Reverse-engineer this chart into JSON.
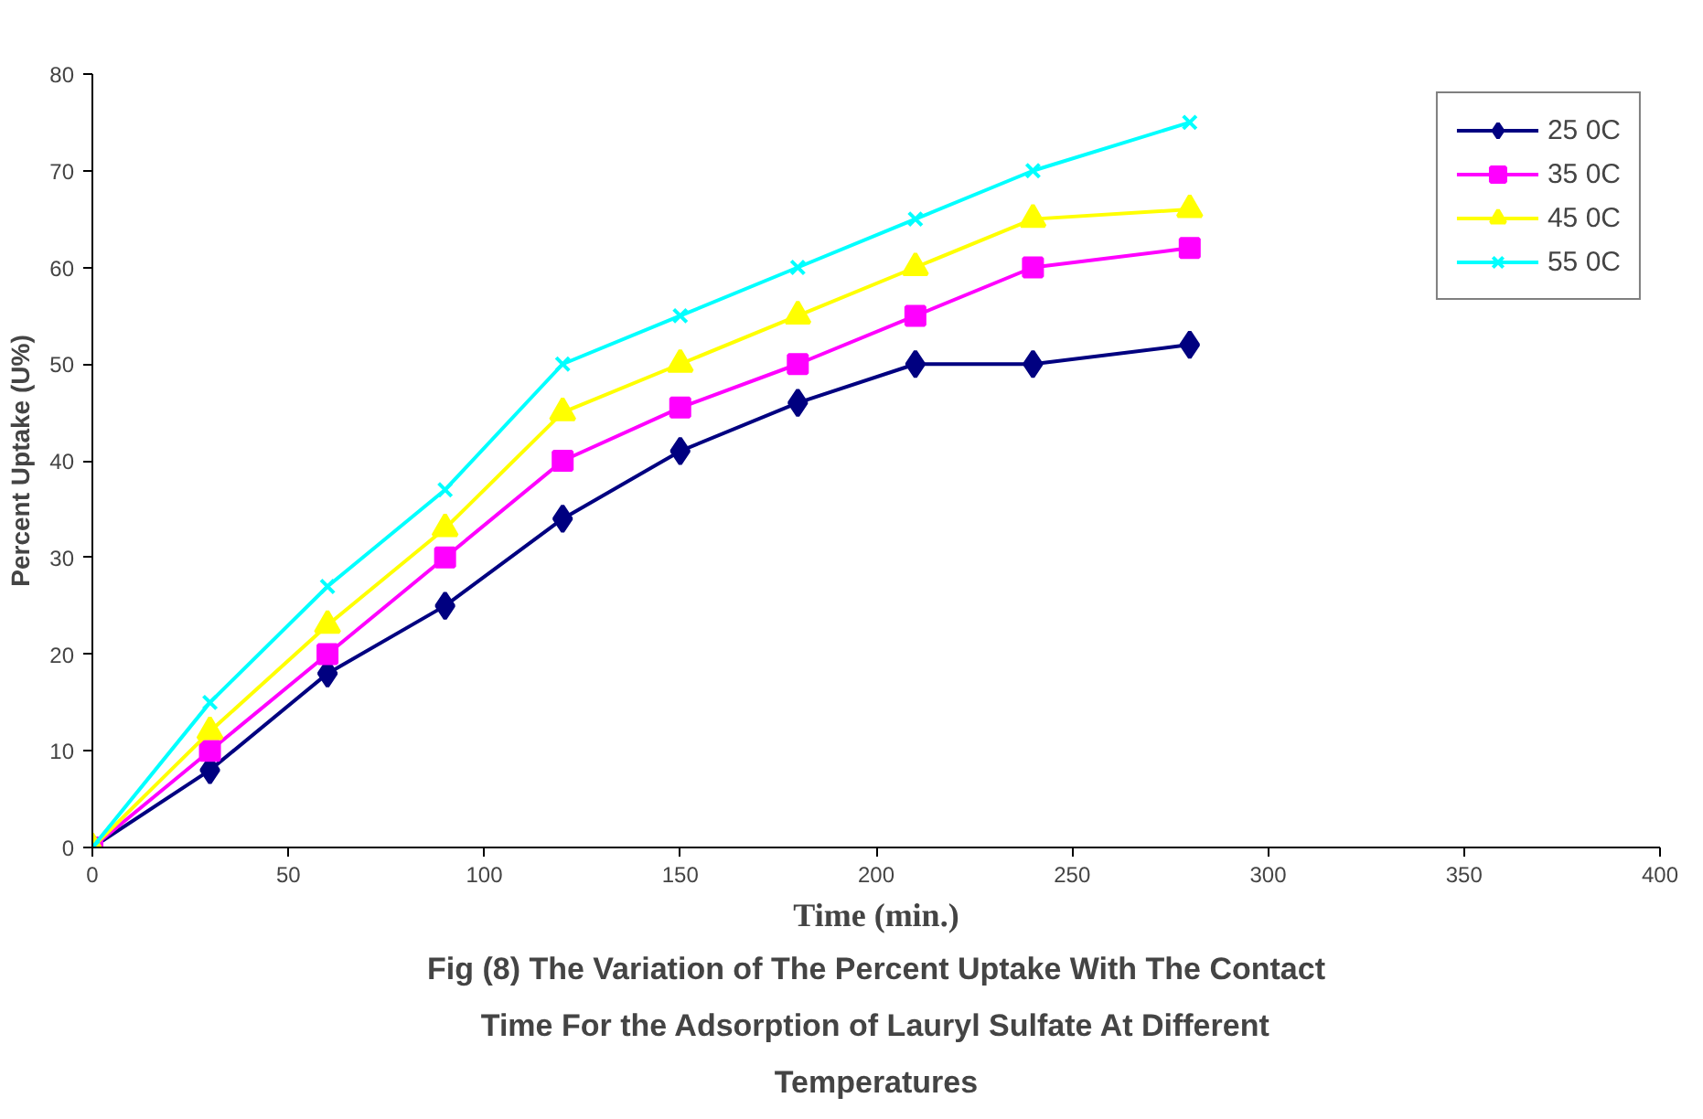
{
  "chart_data": {
    "type": "line",
    "title": "Fig (8) The Variation of The Percent Uptake With The Contact Time For the Adsorption of Lauryl Sulfate At Different Temperatures",
    "xlabel": "Time (min.)",
    "ylabel": "Percent Uptake (U%)",
    "x": [
      0,
      30,
      60,
      90,
      120,
      150,
      180,
      210,
      240,
      280
    ],
    "series": [
      {
        "name": "25 0C",
        "color": "#000080",
        "marker": "diamond",
        "values": [
          0,
          8,
          18,
          25,
          34,
          41,
          46,
          50,
          50,
          52
        ]
      },
      {
        "name": "35 0C",
        "color": "#ff00ff",
        "marker": "square",
        "values": [
          0,
          10,
          20,
          30,
          40,
          45.5,
          50,
          55,
          60,
          62
        ]
      },
      {
        "name": "45 0C",
        "color": "#ffff00",
        "marker": "triangle",
        "values": [
          0,
          12,
          23,
          33,
          45,
          50,
          55,
          60,
          65,
          66
        ]
      },
      {
        "name": "55 0C",
        "color": "#00ffff",
        "marker": "cross",
        "values": [
          0,
          15,
          27,
          37,
          50,
          55,
          60,
          65,
          70,
          75
        ]
      }
    ],
    "xlim": [
      0,
      400
    ],
    "xticks": [
      0,
      50,
      100,
      150,
      200,
      250,
      300,
      350,
      400
    ],
    "ylim": [
      0,
      80
    ],
    "yticks": [
      0,
      10,
      20,
      30,
      40,
      50,
      60,
      70,
      80
    ],
    "grid": false,
    "legend": "top right",
    "line_style": "solid"
  }
}
